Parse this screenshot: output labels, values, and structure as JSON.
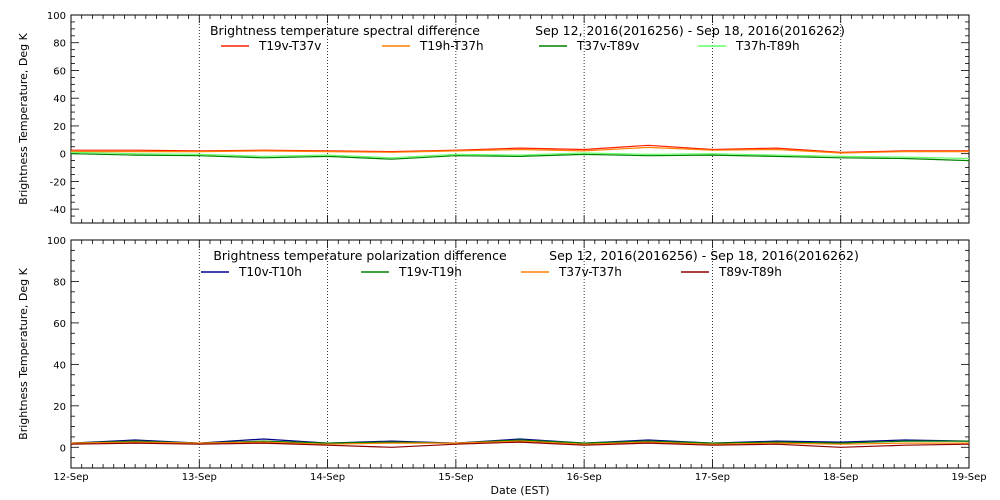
{
  "x_axis": {
    "label": "Date (EST)",
    "tick_labels": [
      "12-Sep",
      "13-Sep",
      "14-Sep",
      "15-Sep",
      "16-Sep",
      "17-Sep",
      "18-Sep",
      "19-Sep"
    ]
  },
  "chart_data": [
    {
      "type": "line",
      "title": "Brightness temperature spectral difference",
      "date_range": "Sep 12, 2016(2016256) - Sep 18, 2016(2016262)",
      "ylabel": "Brightness Temperature, Deg K",
      "xlabel": "",
      "x": [
        "12-Sep",
        "12.5",
        "13-Sep",
        "13.5",
        "14-Sep",
        "14.5",
        "15-Sep",
        "15.5",
        "16-Sep",
        "16.5",
        "17-Sep",
        "17.5",
        "18-Sep",
        "18.5",
        "19-Sep"
      ],
      "ylim": [
        -50,
        100
      ],
      "yticks": [
        -40,
        -20,
        0,
        20,
        40,
        60,
        80,
        100
      ],
      "grid": "dotted vertical lines at each day",
      "legend_placement": "top",
      "series": [
        {
          "name": "T19v-T37v",
          "color": "#ff2000",
          "values": [
            2.5,
            2.5,
            2.0,
            2.5,
            2.0,
            1.5,
            2.5,
            4.0,
            3.0,
            6.0,
            3.0,
            4.0,
            1.0,
            2.0,
            2.0
          ]
        },
        {
          "name": "T19h-T37h",
          "color": "#ff7f00",
          "values": [
            1.5,
            1.5,
            1.5,
            2.0,
            1.5,
            1.0,
            2.0,
            3.0,
            2.0,
            4.5,
            2.5,
            3.0,
            0.5,
            1.5,
            1.5
          ]
        },
        {
          "name": "T37v-T89v",
          "color": "#008000",
          "values": [
            0.0,
            -1.0,
            -1.5,
            -3.0,
            -2.0,
            -4.0,
            -1.5,
            -2.0,
            -0.5,
            -1.5,
            -1.0,
            -2.0,
            -3.0,
            -3.5,
            -5.0
          ]
        },
        {
          "name": "T37h-T89h",
          "color": "#66ff66",
          "values": [
            1.0,
            0.0,
            -0.5,
            -2.0,
            -1.0,
            -3.0,
            -0.5,
            -1.0,
            0.5,
            -0.5,
            0.0,
            -1.0,
            -2.0,
            -2.5,
            -3.5
          ]
        }
      ]
    },
    {
      "type": "line",
      "title": "Brightness temperature polarization difference",
      "date_range": "Sep 12, 2016(2016256) - Sep 18, 2016(2016262)",
      "ylabel": "Brightness Temperature, Deg K",
      "xlabel": "Date (EST)",
      "x": [
        "12-Sep",
        "12.5",
        "13-Sep",
        "13.5",
        "14-Sep",
        "14.5",
        "15-Sep",
        "15.5",
        "16-Sep",
        "16.5",
        "17-Sep",
        "17.5",
        "18-Sep",
        "18.5",
        "19-Sep"
      ],
      "ylim": [
        -10,
        100
      ],
      "yticks": [
        0,
        20,
        40,
        60,
        80,
        100
      ],
      "grid": "dotted vertical lines at each day",
      "legend_placement": "top",
      "series": [
        {
          "name": "T10v-T10h",
          "color": "#00008b",
          "values": [
            2.0,
            3.5,
            2.0,
            4.0,
            2.0,
            3.0,
            2.0,
            4.0,
            2.0,
            3.5,
            2.0,
            3.0,
            2.5,
            3.5,
            3.0
          ]
        },
        {
          "name": "T19v-T19h",
          "color": "#008000",
          "values": [
            2.0,
            3.0,
            2.0,
            3.0,
            2.0,
            2.5,
            2.0,
            3.5,
            2.0,
            3.0,
            2.0,
            2.5,
            2.0,
            3.0,
            3.0
          ]
        },
        {
          "name": "T37v-T37h",
          "color": "#ff7f00",
          "values": [
            2.0,
            2.5,
            2.0,
            2.5,
            1.5,
            2.0,
            2.0,
            3.0,
            1.5,
            2.5,
            1.5,
            2.0,
            1.5,
            2.0,
            2.0
          ]
        },
        {
          "name": "T89v-T89h",
          "color": "#8b0000",
          "values": [
            1.5,
            2.0,
            1.5,
            2.0,
            1.0,
            0.0,
            1.5,
            2.5,
            1.0,
            2.0,
            1.0,
            1.5,
            0.0,
            1.0,
            1.5
          ]
        }
      ]
    }
  ]
}
